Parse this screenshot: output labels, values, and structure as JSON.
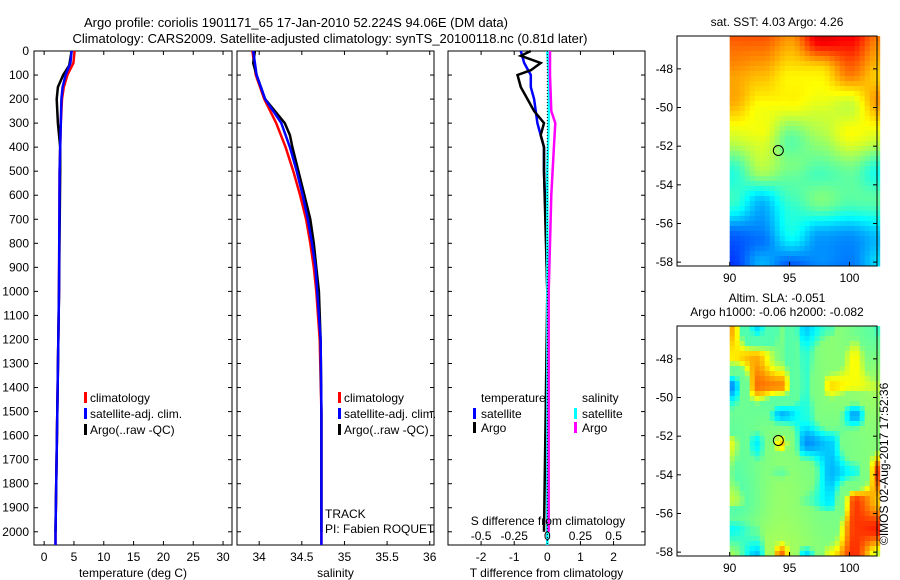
{
  "title": {
    "line1": "Argo profile: coriolis 1901171_65 17-Jan-2010 52.224S 94.06E (DM data)",
    "line2": "Climatology: CARS2009. Satellite-adjusted climatology: synTS_20100118.nc (0.81d later)"
  },
  "colors": {
    "climatology": "#ff0000",
    "satellite": "#0000ff",
    "argo": "#000000",
    "sal_satellite": "#00ffff",
    "sal_argo": "#ff00ff"
  },
  "chart_data": [
    {
      "type": "line",
      "id": "temperature",
      "xlabel": "temperature (deg C)",
      "ylabel": "",
      "xlim": [
        -1.7,
        31.5
      ],
      "ylim": [
        2055,
        0
      ],
      "xticks": [
        0,
        5,
        10,
        15,
        20,
        25,
        30
      ],
      "yticks": [
        0,
        100,
        200,
        300,
        400,
        500,
        600,
        700,
        800,
        900,
        1000,
        1100,
        1200,
        1300,
        1400,
        1500,
        1600,
        1700,
        1800,
        1900,
        2000
      ],
      "legend": [
        "climatology",
        "satellite-adj. clim.",
        "Argo(..raw -QC)"
      ],
      "series": [
        {
          "name": "climatology",
          "color": "#ff0000",
          "points": [
            [
              0,
              5.1
            ],
            [
              50,
              4.9
            ],
            [
              100,
              3.9
            ],
            [
              150,
              3.3
            ],
            [
              200,
              3.0
            ],
            [
              300,
              2.8
            ],
            [
              500,
              2.6
            ],
            [
              1000,
              2.5
            ],
            [
              1500,
              2.2
            ],
            [
              2000,
              1.9
            ],
            [
              2055,
              1.9
            ]
          ]
        },
        {
          "name": "Argo(..raw -QC)",
          "color": "#000000",
          "points": [
            [
              0,
              4.6
            ],
            [
              60,
              4.2
            ],
            [
              100,
              3.2
            ],
            [
              150,
              2.3
            ],
            [
              200,
              2.1
            ],
            [
              300,
              2.3
            ],
            [
              400,
              2.7
            ],
            [
              500,
              2.7
            ],
            [
              1000,
              2.5
            ],
            [
              1500,
              2.2
            ],
            [
              2000,
              1.9
            ]
          ]
        },
        {
          "name": "satellite-adj. clim.",
          "color": "#0000ff",
          "points": [
            [
              0,
              4.6
            ],
            [
              50,
              4.4
            ],
            [
              100,
              3.6
            ],
            [
              150,
              3.1
            ],
            [
              200,
              2.9
            ],
            [
              300,
              2.8
            ],
            [
              500,
              2.6
            ],
            [
              1000,
              2.5
            ],
            [
              1500,
              2.2
            ],
            [
              2000,
              1.9
            ],
            [
              2055,
              1.9
            ]
          ]
        }
      ]
    },
    {
      "type": "line",
      "id": "salinity",
      "xlabel": "salinity",
      "ylabel": "",
      "xlim": [
        33.74,
        36.05
      ],
      "ylim": [
        2055,
        0
      ],
      "xticks": [
        34,
        34.5,
        35,
        35.5,
        36
      ],
      "legend": [
        "climatology",
        "satellite-adj. clim.",
        "Argo(..raw -QC)"
      ],
      "annotation": [
        "TRACK",
        "PI: Fabien ROQUET"
      ],
      "series": [
        {
          "name": "climatology",
          "color": "#ff0000",
          "points": [
            [
              0,
              33.92
            ],
            [
              100,
              33.96
            ],
            [
              200,
              34.06
            ],
            [
              300,
              34.2
            ],
            [
              400,
              34.31
            ],
            [
              500,
              34.4
            ],
            [
              600,
              34.48
            ],
            [
              700,
              34.55
            ],
            [
              800,
              34.6
            ],
            [
              900,
              34.64
            ],
            [
              1000,
              34.67
            ],
            [
              1200,
              34.71
            ],
            [
              1500,
              34.73
            ],
            [
              2000,
              34.73
            ],
            [
              2055,
              34.73
            ]
          ]
        },
        {
          "name": "Argo(..raw -QC)",
          "color": "#000000",
          "points": [
            [
              0,
              33.95
            ],
            [
              50,
              33.93
            ],
            [
              100,
              33.97
            ],
            [
              200,
              34.07
            ],
            [
              300,
              34.3
            ],
            [
              350,
              34.36
            ],
            [
              400,
              34.39
            ],
            [
              500,
              34.46
            ],
            [
              600,
              34.53
            ],
            [
              700,
              34.6
            ],
            [
              800,
              34.64
            ],
            [
              900,
              34.67
            ],
            [
              1000,
              34.7
            ],
            [
              1200,
              34.72
            ],
            [
              1500,
              34.73
            ],
            [
              2000,
              34.73
            ]
          ]
        },
        {
          "name": "satellite-adj. clim.",
          "color": "#0000ff",
          "points": [
            [
              0,
              33.93
            ],
            [
              100,
              33.97
            ],
            [
              200,
              34.07
            ],
            [
              300,
              34.26
            ],
            [
              400,
              34.36
            ],
            [
              500,
              34.44
            ],
            [
              600,
              34.51
            ],
            [
              700,
              34.57
            ],
            [
              800,
              34.62
            ],
            [
              900,
              34.66
            ],
            [
              1000,
              34.68
            ],
            [
              1200,
              34.72
            ],
            [
              1500,
              34.73
            ],
            [
              2000,
              34.73
            ],
            [
              2055,
              34.73
            ]
          ]
        }
      ]
    },
    {
      "type": "line",
      "id": "difference",
      "xlabel": "T difference from climatology",
      "x2label": "S difference from climatology",
      "xlim": [
        -3.0,
        2.95
      ],
      "ylim": [
        2055,
        0
      ],
      "xticks": [
        -2,
        -1,
        0,
        1,
        2
      ],
      "x2ticks": [
        "-0.5",
        "-0.25",
        "0",
        "0.25",
        "0.5"
      ],
      "legend": {
        "temperature_title": "temperature",
        "salinity_title": "salinity",
        "satellite": "satellite",
        "argo": "Argo"
      },
      "series": [
        {
          "name": "T satellite",
          "color": "#0000ff",
          "var": "T",
          "points": [
            [
              0,
              -0.8
            ],
            [
              50,
              -0.7
            ],
            [
              100,
              -0.5
            ],
            [
              150,
              -0.5
            ],
            [
              200,
              -0.4
            ],
            [
              300,
              -0.3
            ],
            [
              400,
              -0.1
            ],
            [
              500,
              -0.1
            ],
            [
              700,
              -0.05
            ],
            [
              1000,
              0
            ],
            [
              2055,
              0
            ]
          ]
        },
        {
          "name": "T Argo",
          "color": "#000000",
          "var": "T",
          "points": [
            [
              0,
              -0.5
            ],
            [
              20,
              -0.8
            ],
            [
              50,
              -0.2
            ],
            [
              80,
              -0.5
            ],
            [
              100,
              -0.9
            ],
            [
              150,
              -0.8
            ],
            [
              200,
              -0.6
            ],
            [
              250,
              -0.4
            ],
            [
              300,
              -0.1
            ],
            [
              350,
              -0.2
            ],
            [
              400,
              -0.1
            ],
            [
              500,
              -0.1
            ],
            [
              1000,
              0
            ],
            [
              1500,
              -0.05
            ],
            [
              2000,
              -0.1
            ]
          ]
        },
        {
          "name": "S satellite",
          "color": "#00ffff",
          "var": "S",
          "points": [
            [
              0,
              0.0
            ],
            [
              100,
              0.01
            ],
            [
              300,
              0.01
            ],
            [
              500,
              0.0
            ],
            [
              1000,
              0.0
            ],
            [
              2055,
              0.0
            ]
          ]
        },
        {
          "name": "S Argo",
          "color": "#ff00ff",
          "var": "S",
          "points": [
            [
              0,
              0.02
            ],
            [
              100,
              0.02
            ],
            [
              250,
              0.03
            ],
            [
              300,
              0.06
            ],
            [
              400,
              0.05
            ],
            [
              500,
              0.04
            ],
            [
              600,
              0.03
            ],
            [
              800,
              0.02
            ],
            [
              1000,
              0.01
            ],
            [
              1500,
              0.01
            ],
            [
              2000,
              0.01
            ]
          ]
        }
      ]
    },
    {
      "type": "heatmap",
      "id": "sst-map",
      "title": "sat. SST: 4.03 Argo: 4.26",
      "xlim": [
        85.6,
        102.3
      ],
      "ylim": [
        -58.2,
        -46.3
      ],
      "xticks": [
        90,
        95,
        100
      ],
      "yticks": [
        -48,
        -50,
        -52,
        -54,
        -56,
        -58
      ],
      "data_xmin": 90,
      "marker": [
        94.06,
        -52.224
      ]
    },
    {
      "type": "heatmap",
      "id": "sla-map",
      "title": "Altim. SLA: -0.051",
      "subtitle": "Argo h1000: -0.06 h2000: -0.082",
      "xlim": [
        85.6,
        102.3
      ],
      "ylim": [
        -58.2,
        -46.3
      ],
      "xticks": [
        90,
        95,
        100
      ],
      "yticks": [
        -48,
        -50,
        -52,
        -54,
        -56,
        -58
      ],
      "data_xmin": 90,
      "marker": [
        94.06,
        -52.224
      ]
    }
  ],
  "credit": "©IMOS 02-Aug-2017 17:52:36"
}
